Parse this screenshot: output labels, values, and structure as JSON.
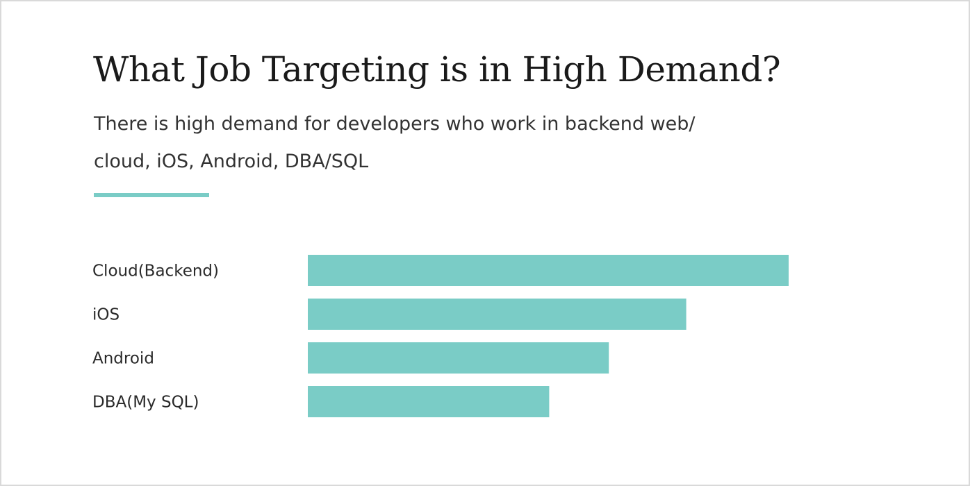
{
  "header": {
    "title": "What Job Targeting is in High Demand?",
    "subtitle_lines": [
      "There is high demand for developers who work in backend web/",
      "cloud, iOS, Android, DBA/SQL"
    ]
  },
  "colors": {
    "accent": "#7accc6",
    "bar": "#7accc6",
    "text": "#1a1a1a"
  },
  "chart_data": {
    "type": "bar",
    "orientation": "horizontal",
    "categories": [
      "Cloud(Backend)",
      "iOS",
      "Android",
      "DBA(My SQL)"
    ],
    "values": [
      100,
      78.7,
      62.6,
      50.2
    ],
    "title": "What Job Targeting is in High Demand?",
    "xlabel": "",
    "ylabel": "",
    "xlim": [
      0,
      100
    ],
    "grid": false,
    "legend": "none"
  }
}
